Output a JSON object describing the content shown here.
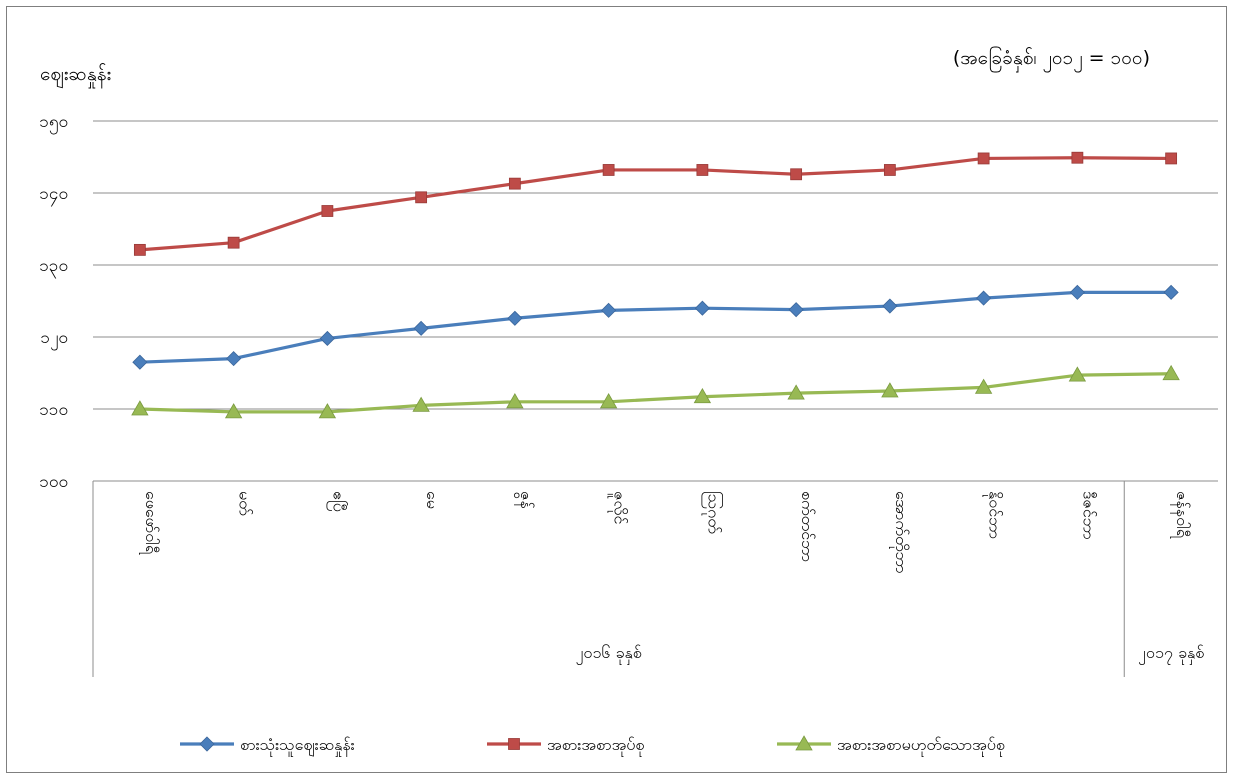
{
  "chart_data": {
    "type": "line",
    "ylabel": "ဈေးဆနှုန်း",
    "note": "(အခြေခံနှစ်၊ ၂၀၁၂ = ၁၀၀)",
    "ylim": [
      100,
      150
    ],
    "yticks": [
      100,
      110,
      120,
      130,
      140,
      150
    ],
    "ytick_labels": [
      "၁၀၀",
      "၁၁၀",
      "၁၂၀",
      "၁၃၀",
      "၁၄၀",
      "၁၅၀"
    ],
    "grid": true,
    "legend_position": "bottom",
    "categories": [
      "ဖေဖော်ဝါရီ",
      "မတ်",
      "ဧပြီ",
      "မေ",
      "ဇွန်",
      "ဇူလိုင်",
      "ဩဂုတ်",
      "စက်တင်ဘာ",
      "အောက်တိုဘာ",
      "နိုဝင်ဘာ",
      "ဒီဇင်ဘာ",
      "ဇန်နဝါရီ"
    ],
    "year_groups": [
      {
        "label": "၂၀၁၆ ခုနှစ်",
        "count": 11
      },
      {
        "label": "၂၀၁၇ ခုနှစ်",
        "count": 1
      }
    ],
    "series": [
      {
        "name": "စားသုံးသူဈေးဆနှုန်း",
        "color": "#4a7ebb",
        "marker": "diamond",
        "values": [
          116.5,
          117.0,
          119.8,
          121.2,
          122.6,
          123.7,
          124.0,
          123.8,
          124.3,
          125.4,
          126.2,
          126.2
        ]
      },
      {
        "name": "အစားအစာအုပ်စု",
        "color": "#be4b48",
        "marker": "square",
        "values": [
          132.1,
          133.1,
          137.5,
          139.4,
          141.3,
          143.2,
          143.2,
          142.6,
          143.2,
          144.8,
          144.9,
          144.8
        ]
      },
      {
        "name": "အစားအစာမဟုတ်သောအုပ်စု",
        "color": "#98b954",
        "marker": "triangle",
        "values": [
          110.0,
          109.6,
          109.6,
          110.5,
          111.0,
          111.0,
          111.7,
          112.2,
          112.5,
          113.0,
          114.7,
          114.9
        ]
      }
    ]
  }
}
